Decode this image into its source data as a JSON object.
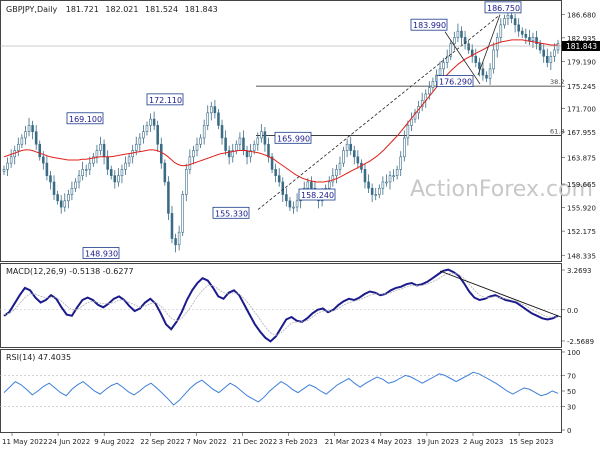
{
  "chart_data": {
    "type": "candlestick",
    "symbol": "GBPJPY,Daily",
    "ohlc": [
      "181.721",
      "182.021",
      "181.524",
      "181.843"
    ],
    "watermark": "ActionForex.com",
    "current_price": "181.843",
    "price_ticks": [
      "186.680",
      "182.935",
      "179.190",
      "175.245",
      "171.700",
      "167.955",
      "163.875",
      "159.665",
      "155.920",
      "152.175",
      "148.335"
    ],
    "price_ylim": [
      147.9,
      188.0
    ],
    "x_tick_labels": [
      "11 May 2022",
      "24 Jun 2022",
      "9 Aug 2022",
      "22 Sep 2022",
      "7 Nov 2022",
      "21 Dec 2022",
      "3 Feb 2023",
      "21 Mar 2023",
      "4 May 2023",
      "19 Jun 2023",
      "2 Aug 2023",
      "15 Sep 2023"
    ],
    "price_annotations": [
      {
        "label": "169.100",
        "value": 169.1
      },
      {
        "label": "172.110",
        "value": 172.11
      },
      {
        "label": "148.930",
        "value": 148.93
      },
      {
        "label": "155.330",
        "value": 155.33
      },
      {
        "label": "165.990",
        "value": 165.99
      },
      {
        "label": "158.240",
        "value": 158.24
      },
      {
        "label": "183.990",
        "value": 183.99
      },
      {
        "label": "186.750",
        "value": 186.75
      },
      {
        "label": "176.290",
        "value": 176.29
      }
    ],
    "fib_levels": [
      {
        "label": "38.2",
        "value": 175.25
      },
      {
        "label": "61.8",
        "value": 167.4
      }
    ],
    "close_series": [
      162,
      163,
      164,
      165,
      166,
      167,
      168,
      169,
      168,
      166,
      164,
      163,
      161,
      160,
      158,
      157,
      156,
      157,
      158,
      159,
      160,
      161,
      162,
      162,
      163,
      164,
      165,
      166,
      164,
      162,
      161,
      160,
      161,
      162,
      163,
      164,
      165,
      166,
      167,
      168,
      169,
      170,
      169,
      166,
      163,
      160,
      155,
      151,
      150,
      152,
      158,
      162,
      164,
      165,
      166,
      167,
      169,
      171,
      172,
      171,
      169,
      167,
      165,
      164,
      165,
      166,
      167,
      165,
      164,
      165,
      166,
      167,
      168,
      166,
      164,
      162,
      161,
      160,
      158,
      157,
      156,
      156,
      157,
      158,
      159,
      160,
      159,
      158,
      157,
      158,
      159,
      160,
      161,
      162,
      163,
      165,
      166,
      165,
      164,
      163,
      162,
      160,
      159,
      158,
      158,
      159,
      160,
      160,
      161,
      161,
      162,
      164,
      167,
      169,
      170,
      171,
      172,
      173,
      174,
      175,
      176,
      177,
      178,
      179,
      180,
      182,
      183,
      184,
      183,
      182,
      181,
      180,
      179,
      178,
      177,
      176.5,
      178,
      181,
      183,
      185,
      186,
      186.5,
      186,
      185,
      184,
      183.5,
      183,
      182.5,
      183,
      182,
      181,
      180,
      179,
      180,
      181,
      182
    ],
    "ma_series": [
      164,
      164.2,
      164.4,
      164.6,
      164.8,
      165,
      165.1,
      165.1,
      165,
      164.8,
      164.6,
      164.4,
      164.2,
      164,
      163.9,
      163.8,
      163.7,
      163.6,
      163.5,
      163.5,
      163.5,
      163.5,
      163.6,
      163.6,
      163.7,
      163.8,
      163.9,
      164,
      164,
      164,
      164,
      164.1,
      164.2,
      164.3,
      164.4,
      164.5,
      164.6,
      164.7,
      164.8,
      164.9,
      165,
      165.1,
      165.1,
      165,
      164.8,
      164.5,
      164.1,
      163.6,
      163.1,
      162.8,
      162.6,
      162.6,
      162.7,
      162.9,
      163.1,
      163.3,
      163.5,
      163.7,
      163.9,
      164.1,
      164.3,
      164.5,
      164.6,
      164.7,
      164.8,
      164.9,
      165,
      165,
      165,
      164.9,
      164.8,
      164.7,
      164.6,
      164.4,
      164.2,
      163.9,
      163.6,
      163.2,
      162.8,
      162.4,
      162,
      161.6,
      161.2,
      160.9,
      160.6,
      160.4,
      160.2,
      160.1,
      160,
      160,
      160,
      160.1,
      160.2,
      160.4,
      160.6,
      160.9,
      161.2,
      161.5,
      161.8,
      162.1,
      162.4,
      162.7,
      163,
      163.3,
      163.7,
      164.1,
      164.6,
      165.1,
      165.7,
      166.3,
      166.9,
      167.5,
      168.2,
      168.9,
      169.6,
      170.3,
      171,
      171.7,
      172.4,
      173.1,
      173.8,
      174.5,
      175.2,
      175.9,
      176.6,
      177.2,
      177.8,
      178.3,
      178.8,
      179.2,
      179.6,
      179.9,
      180.2,
      180.5,
      180.8,
      181.1,
      181.4,
      181.7,
      181.9,
      182.1,
      182.3,
      182.4,
      182.5,
      182.6,
      182.6,
      182.6,
      182.6,
      182.5,
      182.4,
      182.3,
      182.2,
      182.1,
      182,
      181.9,
      181.8,
      181.8,
      181.8
    ],
    "macd": {
      "label": "MACD(12,26,9) -0.5138 -0.6277",
      "ticks": [
        "3.2693",
        "0.0",
        "-2.5689"
      ],
      "ylim": [
        -2.9,
        3.6
      ],
      "macd_series": [
        -0.5,
        -0.2,
        0.5,
        1.2,
        1.8,
        1.6,
        1.0,
        0.6,
        0.8,
        1.2,
        0.9,
        0.2,
        -0.4,
        -0.5,
        0.2,
        0.8,
        1.0,
        0.8,
        0.4,
        0.2,
        0.5,
        0.9,
        1.1,
        0.8,
        0.3,
        -0.1,
        0.1,
        0.6,
        0.9,
        0.5,
        -0.3,
        -1.2,
        -1.6,
        -1.0,
        -0.2,
        0.8,
        1.6,
        2.2,
        2.6,
        2.4,
        1.8,
        1.1,
        0.9,
        1.4,
        1.6,
        1.2,
        0.4,
        -0.4,
        -1.2,
        -1.8,
        -2.3,
        -2.6,
        -2.2,
        -1.5,
        -0.8,
        -0.6,
        -0.9,
        -1.0,
        -0.7,
        -0.3,
        0.0,
        0.1,
        -0.2,
        0.0,
        0.4,
        0.7,
        0.9,
        0.8,
        1.0,
        1.3,
        1.5,
        1.4,
        1.2,
        1.3,
        1.6,
        1.8,
        1.9,
        2.1,
        2.2,
        2.0,
        2.1,
        2.3,
        2.6,
        2.9,
        3.2,
        3.3,
        3.1,
        2.8,
        2.2,
        1.5,
        1.0,
        0.8,
        0.9,
        1.1,
        1.2,
        1.0,
        0.8,
        0.7,
        0.6,
        0.3,
        0.0,
        -0.3,
        -0.5,
        -0.7,
        -0.8,
        -0.7,
        -0.5
      ],
      "signal_series": [
        -0.4,
        -0.3,
        0.0,
        0.5,
        1.0,
        1.3,
        1.3,
        1.1,
        1.0,
        1.0,
        1.0,
        0.7,
        0.3,
        0.0,
        0.0,
        0.3,
        0.6,
        0.7,
        0.6,
        0.5,
        0.5,
        0.6,
        0.8,
        0.8,
        0.6,
        0.4,
        0.2,
        0.3,
        0.5,
        0.6,
        0.3,
        -0.2,
        -0.7,
        -0.9,
        -0.7,
        -0.2,
        0.4,
        1.1,
        1.6,
        2.0,
        2.0,
        1.7,
        1.4,
        1.3,
        1.4,
        1.3,
        0.9,
        0.4,
        -0.2,
        -0.8,
        -1.4,
        -1.9,
        -2.1,
        -1.9,
        -1.5,
        -1.1,
        -1.0,
        -1.0,
        -0.9,
        -0.6,
        -0.3,
        -0.1,
        -0.1,
        -0.1,
        0.1,
        0.4,
        0.6,
        0.7,
        0.8,
        1.0,
        1.2,
        1.3,
        1.3,
        1.3,
        1.4,
        1.6,
        1.7,
        1.9,
        2.0,
        2.0,
        2.0,
        2.1,
        2.3,
        2.5,
        2.8,
        3.0,
        3.0,
        2.9,
        2.6,
        2.1,
        1.6,
        1.2,
        1.0,
        1.0,
        1.1,
        1.0,
        0.9,
        0.8,
        0.7,
        0.5,
        0.3,
        0.0,
        -0.2,
        -0.4,
        -0.6,
        -0.6,
        -0.6
      ]
    },
    "rsi": {
      "label": "RSI(14) 47.4035",
      "ticks": [
        "100",
        "70",
        "50",
        "30",
        "0"
      ],
      "ylim": [
        0,
        100
      ],
      "rsi_series": [
        48,
        55,
        62,
        58,
        52,
        45,
        50,
        56,
        60,
        54,
        48,
        44,
        52,
        58,
        62,
        56,
        50,
        46,
        52,
        57,
        60,
        55,
        49,
        45,
        50,
        56,
        60,
        54,
        47,
        40,
        32,
        38,
        46,
        54,
        60,
        64,
        58,
        52,
        48,
        54,
        60,
        56,
        50,
        44,
        40,
        36,
        42,
        50,
        56,
        62,
        58,
        52,
        48,
        53,
        58,
        55,
        50,
        46,
        52,
        58,
        62,
        66,
        60,
        55,
        60,
        64,
        68,
        65,
        60,
        62,
        66,
        70,
        68,
        64,
        60,
        64,
        68,
        72,
        70,
        66,
        62,
        66,
        70,
        74,
        72,
        68,
        64,
        60,
        55,
        50,
        46,
        50,
        54,
        52,
        48,
        44,
        46,
        50,
        47
      ]
    }
  }
}
